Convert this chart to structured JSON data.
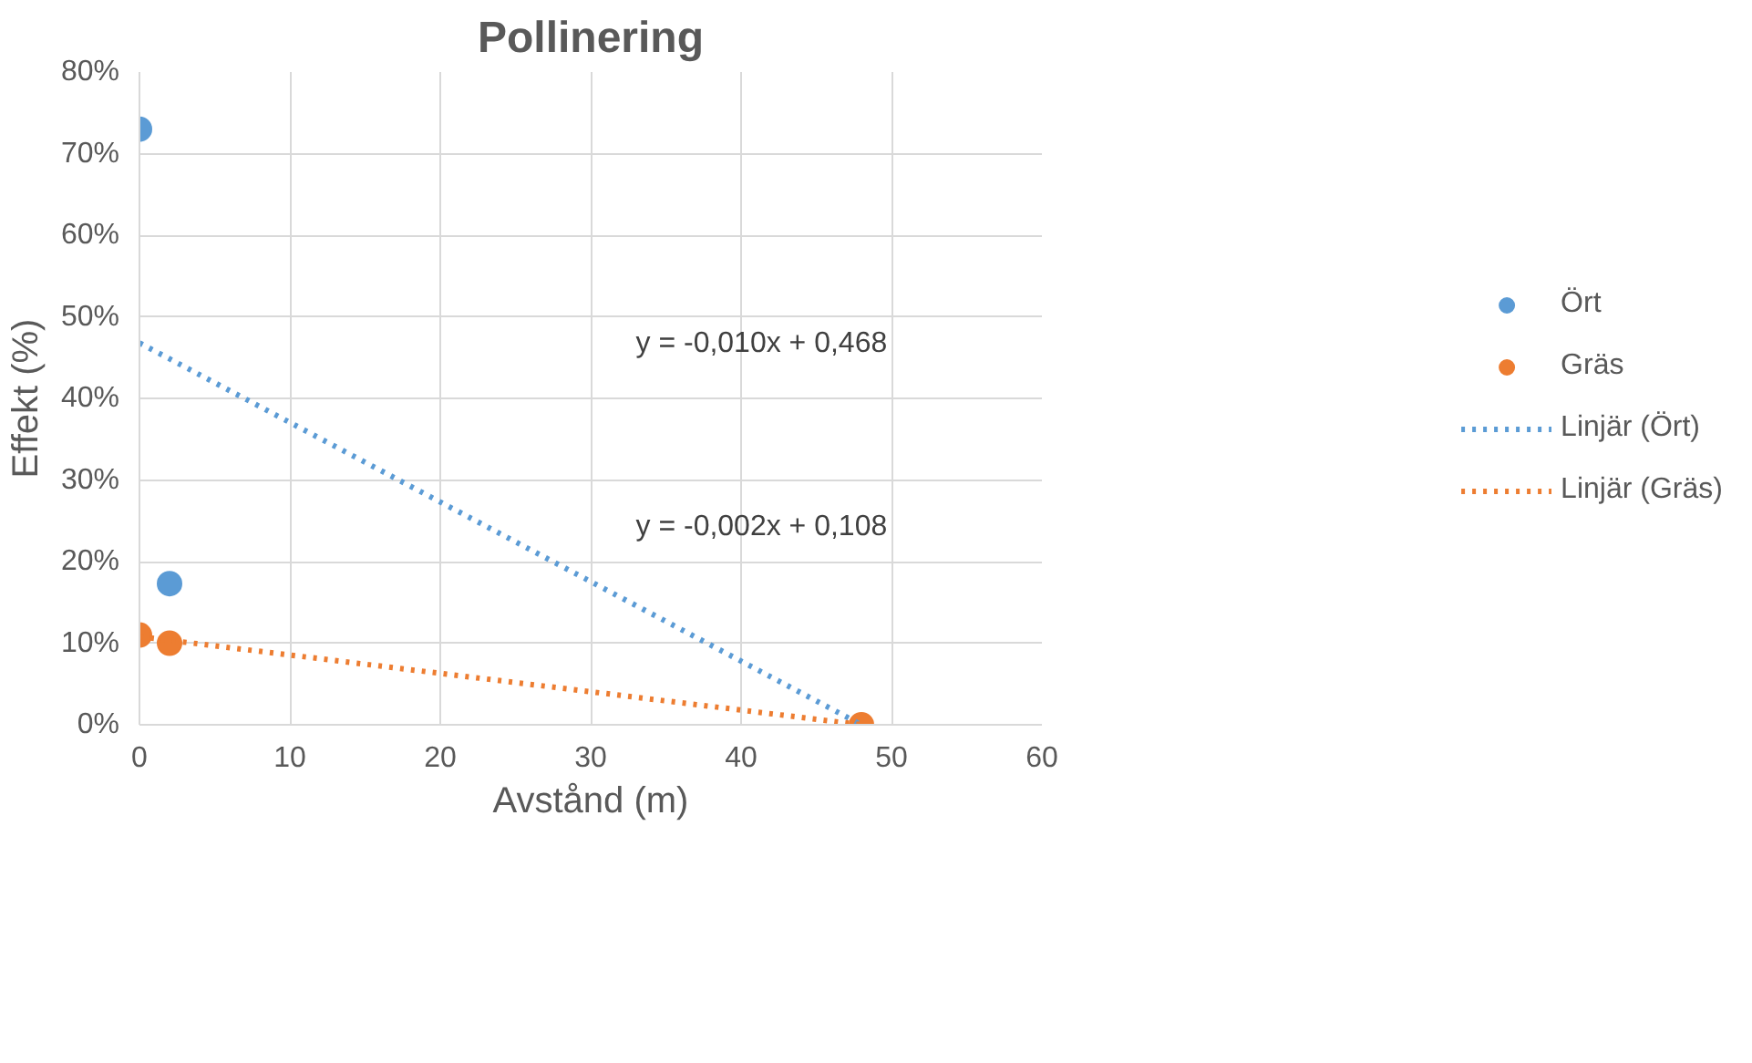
{
  "chart_data": {
    "type": "scatter",
    "title": "Pollinering",
    "xlabel": "Avstånd (m)",
    "ylabel": "Effekt (%)",
    "xlim": [
      0,
      60
    ],
    "xticks": [
      0,
      10,
      20,
      30,
      40,
      50,
      60
    ],
    "ylim": [
      0,
      80
    ],
    "yticks": [
      {
        "value": 0,
        "label": "0%"
      },
      {
        "value": 10,
        "label": "10%"
      },
      {
        "value": 20,
        "label": "20%"
      },
      {
        "value": 30,
        "label": "30%"
      },
      {
        "value": 40,
        "label": "40%"
      },
      {
        "value": 50,
        "label": "50%"
      },
      {
        "value": 60,
        "label": "60%"
      },
      {
        "value": 70,
        "label": "70%"
      },
      {
        "value": 80,
        "label": "80%"
      }
    ],
    "grid": true,
    "legend": "right",
    "marker": "circle",
    "annotations": [
      "y = -0,010x + 0,468",
      "y = -0,002x + 0,108"
    ],
    "series": [
      {
        "name": "Ört",
        "color": "#5b9bd5",
        "x": [
          0,
          2
        ],
        "values": [
          73,
          17.3
        ]
      },
      {
        "name": "Gräs",
        "color": "#ed7d31",
        "x": [
          0,
          2,
          48
        ],
        "values": [
          11,
          10,
          0
        ]
      },
      {
        "name": "Linjär (Ört)",
        "type": "line",
        "marker": "none",
        "line_style": "dotted",
        "color": "#5b9bd5",
        "x": [
          0,
          48
        ],
        "values": [
          46.8,
          0
        ]
      },
      {
        "name": "Linjär (Gräs)",
        "type": "line",
        "marker": "none",
        "line_style": "dotted",
        "color": "#ed7d31",
        "x": [
          0,
          48
        ],
        "values": [
          10.8,
          0
        ]
      }
    ]
  }
}
